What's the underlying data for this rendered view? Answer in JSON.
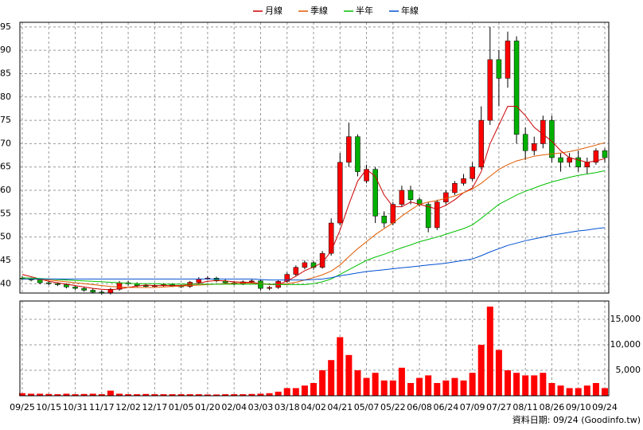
{
  "chart_data": {
    "type": "candlestick",
    "categories": [
      "09/25",
      null,
      null,
      "10/15",
      null,
      null,
      "10/31",
      null,
      null,
      "11/17",
      null,
      null,
      "12/02",
      null,
      null,
      "12/17",
      null,
      null,
      "01/05",
      null,
      null,
      "01/20",
      null,
      null,
      "02/04",
      null,
      null,
      "03/03",
      null,
      null,
      "03/18",
      null,
      null,
      "04/02",
      null,
      null,
      "04/21",
      null,
      null,
      "05/07",
      null,
      null,
      "05/22",
      null,
      null,
      "06/08",
      null,
      null,
      "06/24",
      null,
      null,
      "07/09",
      null,
      null,
      "07/27",
      null,
      null,
      "08/11",
      null,
      null,
      "08/26",
      null,
      null,
      "09/10",
      null,
      null,
      "09/24"
    ],
    "open": [
      41.2,
      41.0,
      40.8,
      40.2,
      40.0,
      39.8,
      39.3,
      39.0,
      38.6,
      38.2,
      38.0,
      38.8,
      40.2,
      40.0,
      39.6,
      39.4,
      39.6,
      39.8,
      39.5,
      39.4,
      40.3,
      41.0,
      41.2,
      40.6,
      40.2,
      40.0,
      40.4,
      40.6,
      39.0,
      39.2,
      40.5,
      42.0,
      43.5,
      44.5,
      43.5,
      46.5,
      53.0,
      66.0,
      71.5,
      62.0,
      64.5,
      54.5,
      53.0,
      57.0,
      60.0,
      58.0,
      57.0,
      52.0,
      57.5,
      59.5,
      61.5,
      62.5,
      65.0,
      75.0,
      88.0,
      84.0,
      92.0,
      72.0,
      68.5,
      70.0,
      75.0,
      67.0,
      66.0,
      67.0,
      65.0,
      66.0,
      68.5
    ],
    "high": [
      41.6,
      41.3,
      41.1,
      40.6,
      40.3,
      40.1,
      39.6,
      39.3,
      39.0,
      38.6,
      39.1,
      40.6,
      40.6,
      40.3,
      39.9,
      39.9,
      40.1,
      40.1,
      39.8,
      40.6,
      41.4,
      41.6,
      41.5,
      40.9,
      40.5,
      40.7,
      40.9,
      40.9,
      39.5,
      40.8,
      42.4,
      43.9,
      45.0,
      44.9,
      47.0,
      54.0,
      68.0,
      74.5,
      72.0,
      65.5,
      65.0,
      55.5,
      57.5,
      61.0,
      61.0,
      58.5,
      57.5,
      58.0,
      60.0,
      62.0,
      63.5,
      66.0,
      78.0,
      95.0,
      90.0,
      94.0,
      93.0,
      73.5,
      71.5,
      76.0,
      76.0,
      68.0,
      68.0,
      68.5,
      67.0,
      69.0,
      69.0
    ],
    "low": [
      40.8,
      40.5,
      39.9,
      39.7,
      39.5,
      39.0,
      38.7,
      38.3,
      37.9,
      37.6,
      37.7,
      38.5,
      39.6,
      39.3,
      39.1,
      39.1,
      39.3,
      39.3,
      39.1,
      39.1,
      40.0,
      40.8,
      40.3,
      39.9,
      39.7,
      39.7,
      40.1,
      38.6,
      38.6,
      38.9,
      40.2,
      41.6,
      43.1,
      43.0,
      43.2,
      46.0,
      52.5,
      65.0,
      63.0,
      61.5,
      53.0,
      52.0,
      52.5,
      56.5,
      57.0,
      56.5,
      51.0,
      51.5,
      57.0,
      59.0,
      61.0,
      62.0,
      64.5,
      74.0,
      78.0,
      82.0,
      70.0,
      66.5,
      67.5,
      69.0,
      66.0,
      64.0,
      65.0,
      64.0,
      63.5,
      65.5,
      66.0
    ],
    "close": [
      41.0,
      40.8,
      40.2,
      40.0,
      39.8,
      39.3,
      39.0,
      38.6,
      38.2,
      38.0,
      38.8,
      40.2,
      40.0,
      39.6,
      39.4,
      39.6,
      39.8,
      39.5,
      39.4,
      40.3,
      41.0,
      41.2,
      40.6,
      40.2,
      40.0,
      40.4,
      40.6,
      39.0,
      39.2,
      40.5,
      42.0,
      43.5,
      44.5,
      43.5,
      46.5,
      53.0,
      66.0,
      71.5,
      64.0,
      64.5,
      54.5,
      53.0,
      57.0,
      60.0,
      58.0,
      57.0,
      52.0,
      57.5,
      59.5,
      61.5,
      62.5,
      65.0,
      75.0,
      88.0,
      84.0,
      92.0,
      72.0,
      68.5,
      70.0,
      75.0,
      67.0,
      66.0,
      67.0,
      65.0,
      66.0,
      68.5,
      67.0
    ],
    "up_color": "#ff0000",
    "down_color": "#00b000",
    "wick_color": "#000000",
    "ylim": [
      38,
      96
    ],
    "yticks": [
      40,
      45,
      50,
      55,
      60,
      65,
      70,
      75,
      80,
      85,
      90,
      95
    ],
    "grid": true,
    "series": [
      {
        "name": "月線",
        "color": "#cc0000",
        "values": [
          42.0,
          41.5,
          41.0,
          40.5,
          40.2,
          39.9,
          39.6,
          39.3,
          39.0,
          38.8,
          38.7,
          38.9,
          39.2,
          39.5,
          39.7,
          39.6,
          39.6,
          39.6,
          39.6,
          39.8,
          40.1,
          40.5,
          40.7,
          40.6,
          40.4,
          40.3,
          40.3,
          40.0,
          39.8,
          39.8,
          40.6,
          41.6,
          42.8,
          43.6,
          44.5,
          47.0,
          51.5,
          57.0,
          62.0,
          64.5,
          63.0,
          59.0,
          56.5,
          56.5,
          57.5,
          57.0,
          56.5,
          56.0,
          56.8,
          58.0,
          59.5,
          60.5,
          64.0,
          70.0,
          74.0,
          78.0,
          78.0,
          76.0,
          73.5,
          72.0,
          70.5,
          68.5,
          67.0,
          66.5,
          66.0,
          66.3,
          66.8
        ]
      },
      {
        "name": "季線",
        "color": "#e05a00",
        "values": [
          41.0,
          41.0,
          40.9,
          40.8,
          40.6,
          40.4,
          40.2,
          40.0,
          39.8,
          39.6,
          39.4,
          39.3,
          39.2,
          39.2,
          39.2,
          39.2,
          39.3,
          39.4,
          39.5,
          39.6,
          39.7,
          39.8,
          39.9,
          40.0,
          40.1,
          40.1,
          40.1,
          40.0,
          39.9,
          39.8,
          40.0,
          40.3,
          40.8,
          41.3,
          41.9,
          42.7,
          44.0,
          45.8,
          47.5,
          49.0,
          50.5,
          51.8,
          53.0,
          54.5,
          55.8,
          57.0,
          57.5,
          57.8,
          58.3,
          58.8,
          59.5,
          60.3,
          61.5,
          63.0,
          64.5,
          65.5,
          66.3,
          66.8,
          67.3,
          67.6,
          67.8,
          68.0,
          68.3,
          68.7,
          69.2,
          69.7,
          70.2
        ]
      },
      {
        "name": "半年",
        "color": "#00c000",
        "values": [
          41.3,
          41.2,
          41.1,
          41.0,
          40.9,
          40.8,
          40.7,
          40.6,
          40.5,
          40.4,
          40.3,
          40.2,
          40.1,
          40.0,
          40.0,
          40.0,
          39.9,
          39.9,
          39.9,
          39.9,
          39.9,
          39.9,
          39.9,
          39.9,
          39.9,
          39.9,
          39.9,
          39.9,
          39.9,
          39.8,
          39.8,
          39.8,
          39.8,
          40.0,
          40.4,
          41.0,
          42.0,
          43.0,
          44.0,
          45.0,
          45.7,
          46.3,
          47.0,
          47.7,
          48.3,
          49.0,
          49.5,
          50.0,
          50.6,
          51.2,
          51.8,
          52.6,
          54.0,
          55.5,
          57.0,
          58.0,
          59.0,
          59.8,
          60.5,
          61.2,
          61.8,
          62.3,
          62.8,
          63.2,
          63.5,
          63.8,
          64.2
        ]
      },
      {
        "name": "年線",
        "color": "#0050d0",
        "values": [
          41.0,
          41.0,
          41.0,
          41.0,
          41.0,
          41.0,
          41.0,
          41.0,
          41.0,
          41.0,
          41.0,
          41.0,
          41.0,
          41.0,
          41.0,
          41.0,
          41.0,
          41.0,
          41.0,
          41.0,
          41.0,
          41.0,
          41.0,
          41.0,
          41.0,
          41.0,
          41.0,
          40.9,
          40.8,
          40.8,
          40.8,
          40.8,
          40.8,
          40.9,
          41.0,
          41.3,
          41.7,
          42.0,
          42.3,
          42.6,
          42.8,
          43.0,
          43.2,
          43.4,
          43.6,
          43.8,
          44.0,
          44.2,
          44.4,
          44.7,
          45.0,
          45.3,
          46.0,
          46.8,
          47.5,
          48.2,
          48.7,
          49.2,
          49.6,
          50.0,
          50.4,
          50.7,
          51.0,
          51.3,
          51.5,
          51.8,
          52.0
        ]
      }
    ],
    "volume": {
      "color": "#ff0000",
      "ylim": [
        0,
        18600
      ],
      "yticks": [
        {
          "value": 5000,
          "label": "5,000"
        },
        {
          "value": 10000,
          "label": "10,000"
        },
        {
          "value": 15000,
          "label": "15,000"
        }
      ],
      "values": [
        500,
        400,
        400,
        350,
        300,
        400,
        300,
        350,
        400,
        300,
        1000,
        400,
        300,
        300,
        350,
        300,
        300,
        300,
        300,
        300,
        300,
        250,
        250,
        300,
        300,
        300,
        350,
        400,
        500,
        800,
        1500,
        1500,
        2000,
        2500,
        5000,
        7000,
        11500,
        8000,
        5000,
        3500,
        4500,
        3000,
        3000,
        5500,
        2500,
        3500,
        4000,
        2500,
        3000,
        3500,
        3000,
        4500,
        10000,
        17500,
        9000,
        5000,
        4500,
        4000,
        4000,
        4500,
        2500,
        2000,
        1500,
        1500,
        2000,
        2500,
        1500
      ]
    },
    "footer": "資料日期: 09/24 (Goodinfo.tw)"
  }
}
